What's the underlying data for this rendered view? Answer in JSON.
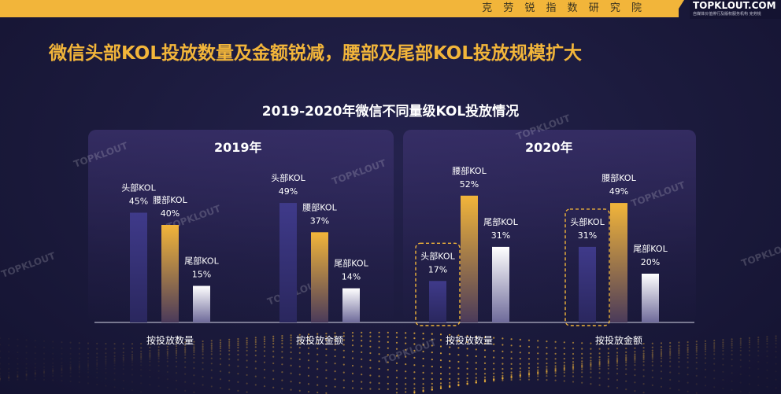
{
  "header": {
    "institute": "克 劳 锐 指 数 研 究 院",
    "logo": "TOPKLOUT.COM",
    "logo_sub": "自媒体价值排行及版权服务机构 克劳锐"
  },
  "headline": "微信头部KOL投放数量及金额锐减，腰部及尾部KOL投放规模扩大",
  "watermark": "TOPKLOUT",
  "colors": {
    "head": "#3f3a8a",
    "waist": "#f2b53a",
    "tail": "#ffffff",
    "accent": "#f2b53a"
  },
  "chart_data": {
    "type": "bar",
    "title": "2019-2020年微信不同量级KOL投放情况",
    "panels": [
      {
        "name": "2019年",
        "groups": [
          {
            "category": "按投放数量",
            "bars": [
              {
                "series": "头部KOL",
                "value": 45,
                "label": "45%"
              },
              {
                "series": "腰部KOL",
                "value": 40,
                "label": "40%"
              },
              {
                "series": "尾部KOL",
                "value": 15,
                "label": "15%"
              }
            ]
          },
          {
            "category": "按投放金额",
            "bars": [
              {
                "series": "头部KOL",
                "value": 49,
                "label": "49%"
              },
              {
                "series": "腰部KOL",
                "value": 37,
                "label": "37%"
              },
              {
                "series": "尾部KOL",
                "value": 14,
                "label": "14%"
              }
            ]
          }
        ]
      },
      {
        "name": "2020年",
        "groups": [
          {
            "category": "按投放数量",
            "bars": [
              {
                "series": "头部KOL",
                "value": 17,
                "label": "17%",
                "highlight": true
              },
              {
                "series": "腰部KOL",
                "value": 52,
                "label": "52%"
              },
              {
                "series": "尾部KOL",
                "value": 31,
                "label": "31%"
              }
            ]
          },
          {
            "category": "按投放金额",
            "bars": [
              {
                "series": "头部KOL",
                "value": 31,
                "label": "31%",
                "highlight": true
              },
              {
                "series": "腰部KOL",
                "value": 49,
                "label": "49%"
              },
              {
                "series": "尾部KOL",
                "value": 20,
                "label": "20%"
              }
            ]
          }
        ]
      }
    ]
  }
}
